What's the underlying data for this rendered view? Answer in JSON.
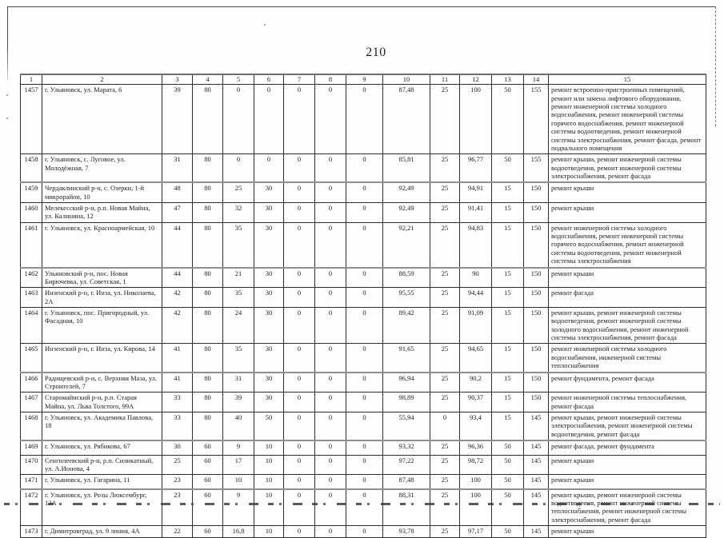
{
  "page": {
    "number": "210"
  },
  "table": {
    "headers": [
      "1",
      "2",
      "3",
      "4",
      "5",
      "6",
      "7",
      "8",
      "9",
      "10",
      "11",
      "12",
      "13",
      "14",
      "15"
    ],
    "rows": [
      {
        "id": "1457",
        "address": "г. Ульяновск, ул. Марата, 6",
        "values": [
          "39",
          "80",
          "0",
          "0",
          "0",
          "0",
          "0",
          "87,48",
          "25",
          "100",
          "50",
          "155"
        ],
        "works": "ремонт встроенно-пристроенных помещений, ремонт или замена лифтового оборудования, ремонт инженерной системы холодного водоснабжения, ремонт инженерной системы горячего водоснабжения, ремонт инженерной системы водоотведения, ремонт инженерной системы электроснабжения, ремонт фасада, ремонт подвального помещения"
      },
      {
        "id": "1458",
        "address": "г. Ульяновск, с. Луговое, ул. Молодёжная, 7",
        "values": [
          "31",
          "80",
          "0",
          "0",
          "0",
          "0",
          "0",
          "85,81",
          "25",
          "96,77",
          "50",
          "155"
        ],
        "works": "ремонт крыши, ремонт инженерной системы водоотведения, ремонт инженерной системы электроснабжения, ремонт фасада"
      },
      {
        "id": "1459",
        "address": "Чердаклинский р-н, с. Озерки, 1-й микрорайон, 10",
        "values": [
          "48",
          "80",
          "25",
          "30",
          "0",
          "0",
          "0",
          "92,49",
          "25",
          "94,91",
          "15",
          "150"
        ],
        "works": "ремонт крыши"
      },
      {
        "id": "1460",
        "address": "Мелекесский р-н, р.п. Новая Майна, ул. Калинина, 12",
        "values": [
          "47",
          "80",
          "32",
          "30",
          "0",
          "0",
          "0",
          "92,49",
          "25",
          "91,41",
          "15",
          "150"
        ],
        "works": "ремонт крыши"
      },
      {
        "id": "1461",
        "address": "г. Ульяновск, ул. Красноармейская, 10",
        "values": [
          "44",
          "80",
          "35",
          "30",
          "0",
          "0",
          "0",
          "92,21",
          "25",
          "94,83",
          "15",
          "150"
        ],
        "works": "ремонт инженерной системы холодного водоснабжения, ремонт инженерной системы горячего водоснабжения, ремонт инженерной системы водоотведения, ремонт инженерной системы электроснабжения"
      },
      {
        "id": "1462",
        "address": "Ульяновский р-н, пос. Новая Бирючевка, ул. Советская, 1",
        "values": [
          "44",
          "80",
          "21",
          "30",
          "0",
          "0",
          "0",
          "88,59",
          "25",
          "90",
          "15",
          "150"
        ],
        "works": "ремонт крыши"
      },
      {
        "id": "1463",
        "address": "Инзенский р-н, г. Инза, ул. Николаева, 2А",
        "values": [
          "42",
          "80",
          "35",
          "30",
          "0",
          "0",
          "0",
          "95,55",
          "25",
          "94,44",
          "15",
          "150"
        ],
        "works": "ремонт фасада"
      },
      {
        "id": "1464",
        "address": "г. Ульяновск, пос. Пригородный, ул. Фасадная, 10",
        "values": [
          "42",
          "80",
          "24",
          "30",
          "0",
          "0",
          "0",
          "89,42",
          "25",
          "91,09",
          "15",
          "150"
        ],
        "works": "ремонт крыши, ремонт инженерной системы водоотведения, ремонт инженерной системы холодного водоснабжения, ремонт инженерной системы электроснабжения, ремонт фасада"
      },
      {
        "id": "1465",
        "address": "Инзенский р-н, г. Инза, ул. Кирова, 14",
        "values": [
          "41",
          "80",
          "35",
          "30",
          "0",
          "0",
          "0",
          "91,65",
          "25",
          "94,65",
          "15",
          "150"
        ],
        "works": "ремонт инженерной системы холодного водоснабжения, инженерной системы теплоснабжения"
      },
      {
        "id": "1466",
        "address": "Радищевский р-н, с. Верхняя Маза, ул. Строителей, 7",
        "values": [
          "41",
          "80",
          "31",
          "30",
          "0",
          "0",
          "0",
          "96,94",
          "25",
          "90,2",
          "15",
          "150"
        ],
        "works": "ремонт фундамента, ремонт фасада"
      },
      {
        "id": "1467",
        "address": "Старомайнский р-н, р.п. Старая Майна, ул. Льва Толстого, 99А",
        "values": [
          "33",
          "80",
          "39",
          "30",
          "0",
          "0",
          "0",
          "98,89",
          "25",
          "90,37",
          "15",
          "150"
        ],
        "works": "ремонт инженерной системы теплоснабжения, ремонт фасада"
      },
      {
        "id": "1468",
        "address": "г. Ульяновск, ул. Академика Павлова, 18",
        "values": [
          "33",
          "80",
          "40",
          "50",
          "0",
          "0",
          "0",
          "55,94",
          "0",
          "93,4",
          "15",
          "145"
        ],
        "works": "ремонт крыши, ремонт инженерной системы электроснабжения, ремонт инженерной системы водоотведения, ремонт фасада"
      },
      {
        "id": "1469",
        "address": "г. Ульяновск, ул. Рябикова, 67",
        "values": [
          "30",
          "60",
          "9",
          "10",
          "0",
          "0",
          "0",
          "93,32",
          "25",
          "96,36",
          "50",
          "145"
        ],
        "works": "ремонт фасада, ремонт фундамента"
      },
      {
        "id": "1470",
        "address": "Сенгилеевский р-н, р.п. Силикатный, ул. А.Ионова, 4",
        "values": [
          "25",
          "60",
          "17",
          "10",
          "0",
          "0",
          "0",
          "97,22",
          "25",
          "98,72",
          "50",
          "145"
        ],
        "works": "ремонт крыши"
      },
      {
        "id": "1471",
        "address": "г. Ульяновск, ул. Гагарина, 11",
        "values": [
          "23",
          "60",
          "10",
          "10",
          "0",
          "0",
          "0",
          "87,48",
          "25",
          "100",
          "50",
          "145"
        ],
        "works": "ремонт крыши"
      },
      {
        "id": "1472",
        "address": "г. Ульяновск, ул. Розы Люксембург, 12А",
        "values": [
          "23",
          "60",
          "9",
          "10",
          "0",
          "0",
          "0",
          "88,31",
          "25",
          "100",
          "50",
          "145"
        ],
        "works": "ремонт крыши, ремонт инженерной системы водоотведения, ремонт инженерной системы теплоснабжения, ремонт инженерной системы электроснабжения, ремонт фасада"
      },
      {
        "id": "1473",
        "address": "г. Димитровград, ул. 9 линия, 4А",
        "values": [
          "22",
          "60",
          "16,8",
          "10",
          "0",
          "0",
          "0",
          "93,78",
          "25",
          "97,17",
          "50",
          "145"
        ],
        "works": "ремонт крыши"
      }
    ]
  }
}
